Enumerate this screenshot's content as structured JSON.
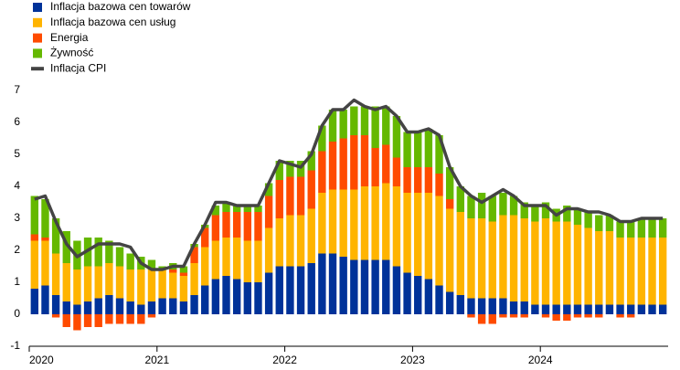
{
  "chart_data": {
    "type": "bar",
    "stacked": true,
    "categories": [
      "2020",
      null,
      null,
      null,
      null,
      null,
      null,
      null,
      null,
      null,
      null,
      null,
      "2021",
      null,
      null,
      null,
      null,
      null,
      null,
      null,
      null,
      null,
      null,
      null,
      "2022",
      null,
      null,
      null,
      null,
      null,
      null,
      null,
      null,
      null,
      null,
      null,
      "2023",
      null,
      null,
      null,
      null,
      null,
      null,
      null,
      null,
      null,
      null,
      null,
      "2024",
      null,
      null,
      null,
      null,
      null,
      null,
      null,
      null,
      null,
      null,
      null
    ],
    "ylim": [
      -1,
      7
    ],
    "yticks": [
      -1,
      0,
      1,
      2,
      3,
      4,
      5,
      6,
      7
    ],
    "series": [
      {
        "name": "Inflacja bazowa cen towarów",
        "color": "#003299",
        "values": [
          0.8,
          0.9,
          0.6,
          0.4,
          0.3,
          0.4,
          0.5,
          0.6,
          0.5,
          0.4,
          0.3,
          0.4,
          0.5,
          0.5,
          0.4,
          0.6,
          0.9,
          1.1,
          1.2,
          1.1,
          1.0,
          1.0,
          1.3,
          1.5,
          1.5,
          1.5,
          1.6,
          1.9,
          1.9,
          1.8,
          1.7,
          1.7,
          1.7,
          1.7,
          1.5,
          1.3,
          1.2,
          1.1,
          0.9,
          0.7,
          0.6,
          0.5,
          0.5,
          0.5,
          0.5,
          0.4,
          0.4,
          0.3,
          0.3,
          0.3,
          0.3,
          0.3,
          0.3,
          0.3,
          0.3,
          0.3,
          0.3,
          0.3,
          0.3,
          0.3
        ]
      },
      {
        "name": "Inflacja bazowa cen usług",
        "color": "#ffb400",
        "values": [
          1.5,
          1.4,
          1.3,
          1.2,
          1.1,
          1.1,
          1.0,
          1.0,
          1.0,
          1.0,
          1.1,
          1.0,
          0.9,
          0.8,
          0.8,
          1.0,
          1.2,
          1.2,
          1.2,
          1.3,
          1.3,
          1.3,
          1.4,
          1.5,
          1.6,
          1.6,
          1.7,
          1.9,
          2.0,
          2.1,
          2.2,
          2.3,
          2.3,
          2.4,
          2.5,
          2.5,
          2.6,
          2.7,
          2.8,
          2.6,
          2.6,
          2.5,
          2.5,
          2.4,
          2.6,
          2.7,
          2.6,
          2.6,
          2.7,
          2.6,
          2.6,
          2.5,
          2.4,
          2.3,
          2.3,
          2.1,
          2.1,
          2.1,
          2.1,
          2.1
        ]
      },
      {
        "name": "Energia",
        "color": "#ff4b00",
        "values": [
          0.2,
          0.1,
          -0.1,
          -0.4,
          -0.5,
          -0.4,
          -0.4,
          -0.3,
          -0.3,
          -0.3,
          -0.3,
          -0.1,
          0.0,
          0.1,
          0.1,
          0.5,
          0.6,
          0.8,
          0.8,
          0.8,
          0.9,
          0.9,
          1.0,
          1.2,
          1.2,
          1.2,
          1.2,
          1.3,
          1.5,
          1.6,
          1.7,
          1.6,
          1.2,
          1.2,
          0.9,
          0.8,
          0.8,
          0.8,
          0.7,
          0.3,
          0.0,
          -0.1,
          -0.3,
          -0.3,
          -0.1,
          -0.1,
          -0.1,
          0.0,
          -0.1,
          -0.2,
          -0.2,
          -0.1,
          -0.1,
          -0.1,
          0.0,
          -0.1,
          -0.1,
          0.0,
          0.0,
          0.0
        ]
      },
      {
        "name": "Żywność",
        "color": "#65b800",
        "values": [
          1.2,
          1.2,
          1.1,
          1.0,
          0.9,
          0.9,
          0.9,
          0.7,
          0.6,
          0.5,
          0.4,
          0.3,
          0.1,
          0.2,
          0.2,
          0.1,
          0.1,
          0.3,
          0.3,
          0.2,
          0.2,
          0.2,
          0.4,
          0.6,
          0.5,
          0.5,
          0.6,
          0.8,
          1.0,
          0.9,
          0.9,
          0.9,
          1.3,
          1.2,
          1.3,
          1.1,
          1.1,
          1.2,
          1.2,
          1.0,
          0.8,
          0.7,
          0.8,
          0.8,
          0.7,
          0.6,
          0.5,
          0.5,
          0.5,
          0.4,
          0.5,
          0.5,
          0.5,
          0.5,
          0.5,
          0.5,
          0.5,
          0.6,
          0.6,
          0.6
        ]
      },
      {
        "name": "Inflacja CPI",
        "type": "line",
        "color": "#444444",
        "values": [
          3.6,
          3.7,
          2.9,
          2.2,
          1.8,
          2.0,
          2.2,
          2.2,
          2.2,
          2.1,
          1.6,
          1.4,
          1.4,
          1.5,
          1.5,
          2.2,
          2.8,
          3.5,
          3.5,
          3.4,
          3.4,
          3.4,
          4.1,
          4.8,
          4.7,
          4.6,
          5.0,
          5.9,
          6.4,
          6.4,
          6.7,
          6.5,
          6.4,
          6.5,
          6.2,
          5.7,
          5.7,
          5.8,
          5.6,
          4.6,
          4.0,
          3.7,
          3.5,
          3.7,
          3.9,
          3.7,
          3.4,
          3.4,
          3.4,
          3.1,
          3.3,
          3.3,
          3.2,
          3.2,
          3.1,
          2.9,
          2.9,
          3.0,
          3.0,
          3.0
        ]
      }
    ]
  }
}
